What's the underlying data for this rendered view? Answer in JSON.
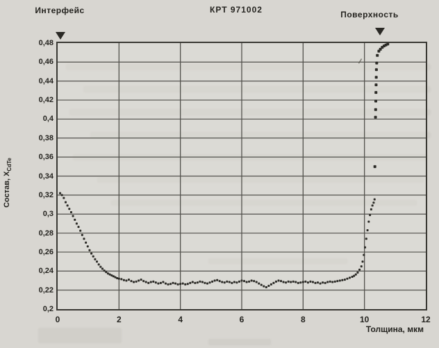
{
  "figure": {
    "title": "КРТ 971002",
    "labels": {
      "interface": "Интерфейс",
      "surface": "Поверхность"
    },
    "axis": {
      "y_label_main": "Состав, X",
      "y_label_sub": "CdTe",
      "x_label": "Толщина, мкм"
    }
  },
  "colors": {
    "paper": "#d8d6d1",
    "ink": "#24231f",
    "grid": "#52514c",
    "border": "#393833",
    "point": "#2b2a26"
  },
  "chart_data": {
    "type": "scatter",
    "title": "КРТ 971002",
    "xlabel": "Толщина, мкм",
    "ylabel": "Состав, X_CdTe",
    "xlim": [
      0,
      12
    ],
    "ylim": [
      0.2,
      0.48
    ],
    "grid": true,
    "legend": "none",
    "x_ticks": [
      {
        "v": 0,
        "label": "0"
      },
      {
        "v": 2,
        "label": "2"
      },
      {
        "v": 4,
        "label": "4"
      },
      {
        "v": 6,
        "label": "6"
      },
      {
        "v": 8,
        "label": "8"
      },
      {
        "v": 10,
        "label": "10"
      },
      {
        "v": 12,
        "label": "12"
      }
    ],
    "y_ticks": [
      {
        "v": 0.48,
        "label": "0,48"
      },
      {
        "v": 0.46,
        "label": "0,46"
      },
      {
        "v": 0.44,
        "label": "0,44"
      },
      {
        "v": 0.42,
        "label": "0,42"
      },
      {
        "v": 0.4,
        "label": "0,4"
      },
      {
        "v": 0.38,
        "label": "0,38"
      },
      {
        "v": 0.36,
        "label": "0,36"
      },
      {
        "v": 0.34,
        "label": "0,34"
      },
      {
        "v": 0.32,
        "label": "0,32"
      },
      {
        "v": 0.3,
        "label": "0,3"
      },
      {
        "v": 0.28,
        "label": "0,28"
      },
      {
        "v": 0.26,
        "label": "0,26"
      },
      {
        "v": 0.24,
        "label": "0,24"
      },
      {
        "v": 0.22,
        "label": "0,22"
      },
      {
        "v": 0.2,
        "label": "0,2"
      }
    ],
    "annotations": [
      {
        "name": "interface",
        "text": "Интерфейс",
        "x_marker": 0.1
      },
      {
        "name": "surface",
        "text": "Поверхность",
        "x_marker": 10.5
      }
    ],
    "series": [
      {
        "name": "composition-profile",
        "marker": "square",
        "size": 3,
        "points": [
          [
            0.08,
            0.322
          ],
          [
            0.14,
            0.32
          ],
          [
            0.2,
            0.317
          ],
          [
            0.26,
            0.3125
          ],
          [
            0.32,
            0.309
          ],
          [
            0.38,
            0.3055
          ],
          [
            0.44,
            0.302
          ],
          [
            0.5,
            0.298
          ],
          [
            0.56,
            0.294
          ],
          [
            0.62,
            0.29
          ],
          [
            0.68,
            0.2865
          ],
          [
            0.74,
            0.2825
          ],
          [
            0.8,
            0.278
          ],
          [
            0.86,
            0.274
          ],
          [
            0.92,
            0.27
          ],
          [
            0.98,
            0.266
          ],
          [
            1.04,
            0.262
          ],
          [
            1.1,
            0.2585
          ],
          [
            1.16,
            0.2555
          ],
          [
            1.22,
            0.2525
          ],
          [
            1.28,
            0.25
          ],
          [
            1.34,
            0.247
          ],
          [
            1.4,
            0.2445
          ],
          [
            1.46,
            0.2425
          ],
          [
            1.52,
            0.2405
          ],
          [
            1.58,
            0.239
          ],
          [
            1.64,
            0.2375
          ],
          [
            1.7,
            0.2365
          ],
          [
            1.76,
            0.2355
          ],
          [
            1.82,
            0.2345
          ],
          [
            1.88,
            0.2335
          ],
          [
            1.94,
            0.2325
          ],
          [
            2.0,
            0.232
          ],
          [
            2.08,
            0.2315
          ],
          [
            2.16,
            0.2305
          ],
          [
            2.24,
            0.23
          ],
          [
            2.32,
            0.231
          ],
          [
            2.4,
            0.2295
          ],
          [
            2.48,
            0.2285
          ],
          [
            2.56,
            0.229
          ],
          [
            2.64,
            0.23
          ],
          [
            2.72,
            0.231
          ],
          [
            2.8,
            0.2295
          ],
          [
            2.88,
            0.2285
          ],
          [
            2.96,
            0.2275
          ],
          [
            3.04,
            0.2285
          ],
          [
            3.12,
            0.229
          ],
          [
            3.2,
            0.228
          ],
          [
            3.28,
            0.227
          ],
          [
            3.36,
            0.2275
          ],
          [
            3.44,
            0.2285
          ],
          [
            3.52,
            0.227
          ],
          [
            3.6,
            0.226
          ],
          [
            3.68,
            0.2265
          ],
          [
            3.76,
            0.2275
          ],
          [
            3.84,
            0.227
          ],
          [
            3.92,
            0.226
          ],
          [
            4.0,
            0.2265
          ],
          [
            4.08,
            0.227
          ],
          [
            4.16,
            0.226
          ],
          [
            4.24,
            0.2265
          ],
          [
            4.32,
            0.2275
          ],
          [
            4.4,
            0.2285
          ],
          [
            4.48,
            0.2275
          ],
          [
            4.56,
            0.228
          ],
          [
            4.64,
            0.229
          ],
          [
            4.72,
            0.2285
          ],
          [
            4.8,
            0.2275
          ],
          [
            4.88,
            0.227
          ],
          [
            4.96,
            0.228
          ],
          [
            5.04,
            0.229
          ],
          [
            5.12,
            0.23
          ],
          [
            5.2,
            0.2305
          ],
          [
            5.28,
            0.2295
          ],
          [
            5.36,
            0.2285
          ],
          [
            5.44,
            0.228
          ],
          [
            5.52,
            0.229
          ],
          [
            5.6,
            0.2285
          ],
          [
            5.68,
            0.2275
          ],
          [
            5.76,
            0.2285
          ],
          [
            5.84,
            0.228
          ],
          [
            5.92,
            0.229
          ],
          [
            6.0,
            0.23
          ],
          [
            6.08,
            0.2295
          ],
          [
            6.16,
            0.2285
          ],
          [
            6.24,
            0.229
          ],
          [
            6.32,
            0.23
          ],
          [
            6.4,
            0.2295
          ],
          [
            6.48,
            0.2285
          ],
          [
            6.56,
            0.227
          ],
          [
            6.64,
            0.2255
          ],
          [
            6.72,
            0.224
          ],
          [
            6.8,
            0.223
          ],
          [
            6.88,
            0.2245
          ],
          [
            6.96,
            0.226
          ],
          [
            7.04,
            0.2275
          ],
          [
            7.12,
            0.229
          ],
          [
            7.2,
            0.23
          ],
          [
            7.28,
            0.2295
          ],
          [
            7.36,
            0.2285
          ],
          [
            7.44,
            0.228
          ],
          [
            7.52,
            0.229
          ],
          [
            7.6,
            0.2285
          ],
          [
            7.68,
            0.229
          ],
          [
            7.76,
            0.2285
          ],
          [
            7.84,
            0.2275
          ],
          [
            7.92,
            0.228
          ],
          [
            8.0,
            0.2285
          ],
          [
            8.08,
            0.229
          ],
          [
            8.16,
            0.228
          ],
          [
            8.24,
            0.229
          ],
          [
            8.32,
            0.2285
          ],
          [
            8.4,
            0.2275
          ],
          [
            8.48,
            0.228
          ],
          [
            8.56,
            0.227
          ],
          [
            8.64,
            0.228
          ],
          [
            8.72,
            0.2275
          ],
          [
            8.8,
            0.2285
          ],
          [
            8.88,
            0.229
          ],
          [
            8.96,
            0.2285
          ],
          [
            9.04,
            0.229
          ],
          [
            9.12,
            0.2295
          ],
          [
            9.2,
            0.23
          ],
          [
            9.28,
            0.2305
          ],
          [
            9.36,
            0.231
          ],
          [
            9.44,
            0.232
          ],
          [
            9.52,
            0.233
          ],
          [
            9.6,
            0.234
          ],
          [
            9.66,
            0.235
          ],
          [
            9.72,
            0.2365
          ],
          [
            9.78,
            0.2385
          ],
          [
            9.84,
            0.2415
          ],
          [
            9.9,
            0.245
          ],
          [
            9.94,
            0.25
          ],
          [
            9.98,
            0.257
          ],
          [
            10.02,
            0.265
          ],
          [
            10.06,
            0.274
          ],
          [
            10.1,
            0.283
          ],
          [
            10.14,
            0.292
          ],
          [
            10.18,
            0.299
          ],
          [
            10.22,
            0.305
          ],
          [
            10.26,
            0.309
          ],
          [
            10.3,
            0.312
          ],
          [
            10.33,
            0.3155
          ]
        ]
      },
      {
        "name": "surface-spike",
        "marker": "square",
        "size": 4,
        "points": [
          [
            10.34,
            0.35
          ],
          [
            10.36,
            0.402
          ],
          [
            10.365,
            0.41
          ],
          [
            10.37,
            0.419
          ],
          [
            10.375,
            0.428
          ],
          [
            10.38,
            0.436
          ],
          [
            10.385,
            0.444
          ],
          [
            10.39,
            0.452
          ],
          [
            10.4,
            0.459
          ],
          [
            10.42,
            0.467
          ],
          [
            10.47,
            0.4715
          ],
          [
            10.52,
            0.4735
          ],
          [
            10.58,
            0.4755
          ],
          [
            10.64,
            0.477
          ],
          [
            10.7,
            0.478
          ],
          [
            10.76,
            0.479
          ]
        ]
      }
    ],
    "stray_marks": [
      [
        9.86,
        0.461
      ]
    ]
  }
}
